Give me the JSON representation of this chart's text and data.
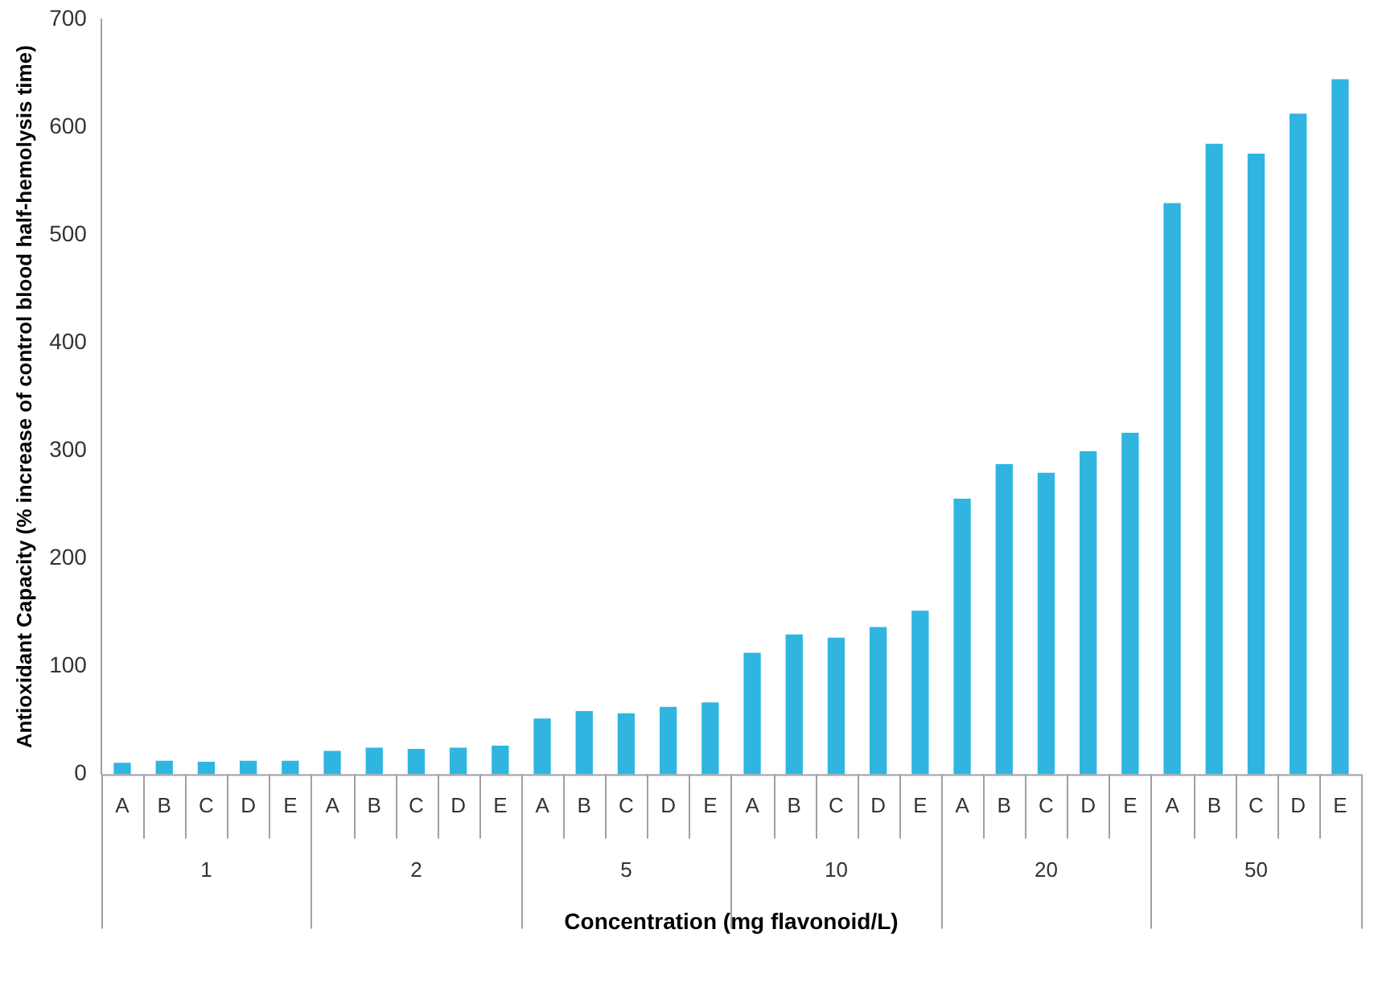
{
  "chart_data": {
    "type": "bar",
    "xlabel": "Concentration (mg flavonoid/L)",
    "ylabel": "Antioxidant Capacity (% increase of control blood half-hemolysis time)",
    "categories": [
      "A",
      "B",
      "C",
      "D",
      "E",
      "A",
      "B",
      "C",
      "D",
      "E",
      "A",
      "B",
      "C",
      "D",
      "E",
      "A",
      "B",
      "C",
      "D",
      "E",
      "A",
      "B",
      "C",
      "D",
      "E",
      "A",
      "B",
      "C",
      "D",
      "E"
    ],
    "annotations": [
      "1",
      "2",
      "5",
      "10",
      "20",
      "50"
    ],
    "values": [
      10,
      12,
      11,
      12,
      12,
      21,
      24,
      23,
      24,
      26,
      51,
      58,
      56,
      62,
      66,
      112,
      129,
      126,
      136,
      151,
      255,
      287,
      279,
      299,
      316,
      529,
      584,
      575,
      612,
      644
    ],
    "color": "#2fb5e0",
    "ylim": [
      0,
      700
    ],
    "yticks": [
      0,
      100,
      200,
      300,
      400,
      500,
      600,
      700
    ],
    "grid": false,
    "legend": false
  }
}
